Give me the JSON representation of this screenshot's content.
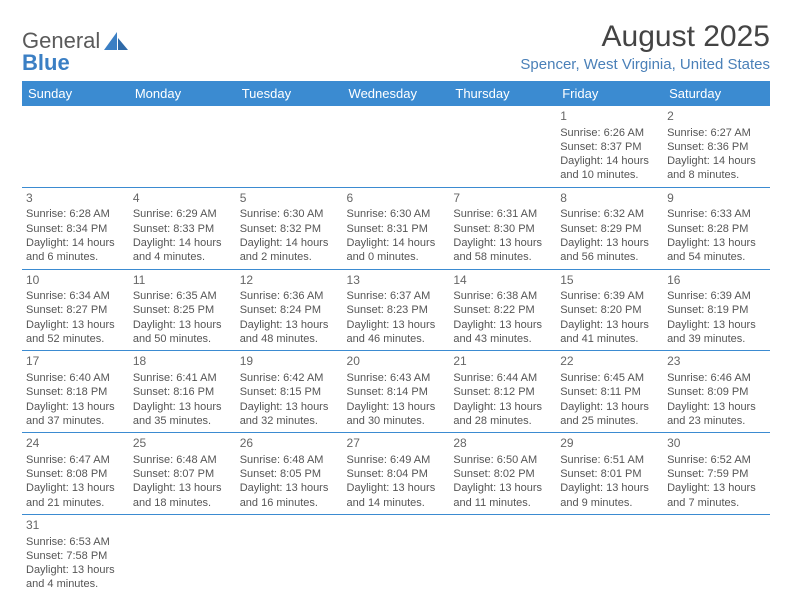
{
  "brand": {
    "part1": "General",
    "part2": "Blue"
  },
  "title": "August 2025",
  "location": "Spencer, West Virginia, United States",
  "colors": {
    "header_bg": "#3b8bd1",
    "header_text": "#ffffff",
    "cell_border": "#3b8bd1",
    "location_color": "#4a80b8",
    "daynum_color": "#666666",
    "body_text": "#555555"
  },
  "day_headers": [
    "Sunday",
    "Monday",
    "Tuesday",
    "Wednesday",
    "Thursday",
    "Friday",
    "Saturday"
  ],
  "weeks": [
    [
      null,
      null,
      null,
      null,
      null,
      {
        "n": "1",
        "sr": "Sunrise: 6:26 AM",
        "ss": "Sunset: 8:37 PM",
        "dl": "Daylight: 14 hours and 10 minutes."
      },
      {
        "n": "2",
        "sr": "Sunrise: 6:27 AM",
        "ss": "Sunset: 8:36 PM",
        "dl": "Daylight: 14 hours and 8 minutes."
      }
    ],
    [
      {
        "n": "3",
        "sr": "Sunrise: 6:28 AM",
        "ss": "Sunset: 8:34 PM",
        "dl": "Daylight: 14 hours and 6 minutes."
      },
      {
        "n": "4",
        "sr": "Sunrise: 6:29 AM",
        "ss": "Sunset: 8:33 PM",
        "dl": "Daylight: 14 hours and 4 minutes."
      },
      {
        "n": "5",
        "sr": "Sunrise: 6:30 AM",
        "ss": "Sunset: 8:32 PM",
        "dl": "Daylight: 14 hours and 2 minutes."
      },
      {
        "n": "6",
        "sr": "Sunrise: 6:30 AM",
        "ss": "Sunset: 8:31 PM",
        "dl": "Daylight: 14 hours and 0 minutes."
      },
      {
        "n": "7",
        "sr": "Sunrise: 6:31 AM",
        "ss": "Sunset: 8:30 PM",
        "dl": "Daylight: 13 hours and 58 minutes."
      },
      {
        "n": "8",
        "sr": "Sunrise: 6:32 AM",
        "ss": "Sunset: 8:29 PM",
        "dl": "Daylight: 13 hours and 56 minutes."
      },
      {
        "n": "9",
        "sr": "Sunrise: 6:33 AM",
        "ss": "Sunset: 8:28 PM",
        "dl": "Daylight: 13 hours and 54 minutes."
      }
    ],
    [
      {
        "n": "10",
        "sr": "Sunrise: 6:34 AM",
        "ss": "Sunset: 8:27 PM",
        "dl": "Daylight: 13 hours and 52 minutes."
      },
      {
        "n": "11",
        "sr": "Sunrise: 6:35 AM",
        "ss": "Sunset: 8:25 PM",
        "dl": "Daylight: 13 hours and 50 minutes."
      },
      {
        "n": "12",
        "sr": "Sunrise: 6:36 AM",
        "ss": "Sunset: 8:24 PM",
        "dl": "Daylight: 13 hours and 48 minutes."
      },
      {
        "n": "13",
        "sr": "Sunrise: 6:37 AM",
        "ss": "Sunset: 8:23 PM",
        "dl": "Daylight: 13 hours and 46 minutes."
      },
      {
        "n": "14",
        "sr": "Sunrise: 6:38 AM",
        "ss": "Sunset: 8:22 PM",
        "dl": "Daylight: 13 hours and 43 minutes."
      },
      {
        "n": "15",
        "sr": "Sunrise: 6:39 AM",
        "ss": "Sunset: 8:20 PM",
        "dl": "Daylight: 13 hours and 41 minutes."
      },
      {
        "n": "16",
        "sr": "Sunrise: 6:39 AM",
        "ss": "Sunset: 8:19 PM",
        "dl": "Daylight: 13 hours and 39 minutes."
      }
    ],
    [
      {
        "n": "17",
        "sr": "Sunrise: 6:40 AM",
        "ss": "Sunset: 8:18 PM",
        "dl": "Daylight: 13 hours and 37 minutes."
      },
      {
        "n": "18",
        "sr": "Sunrise: 6:41 AM",
        "ss": "Sunset: 8:16 PM",
        "dl": "Daylight: 13 hours and 35 minutes."
      },
      {
        "n": "19",
        "sr": "Sunrise: 6:42 AM",
        "ss": "Sunset: 8:15 PM",
        "dl": "Daylight: 13 hours and 32 minutes."
      },
      {
        "n": "20",
        "sr": "Sunrise: 6:43 AM",
        "ss": "Sunset: 8:14 PM",
        "dl": "Daylight: 13 hours and 30 minutes."
      },
      {
        "n": "21",
        "sr": "Sunrise: 6:44 AM",
        "ss": "Sunset: 8:12 PM",
        "dl": "Daylight: 13 hours and 28 minutes."
      },
      {
        "n": "22",
        "sr": "Sunrise: 6:45 AM",
        "ss": "Sunset: 8:11 PM",
        "dl": "Daylight: 13 hours and 25 minutes."
      },
      {
        "n": "23",
        "sr": "Sunrise: 6:46 AM",
        "ss": "Sunset: 8:09 PM",
        "dl": "Daylight: 13 hours and 23 minutes."
      }
    ],
    [
      {
        "n": "24",
        "sr": "Sunrise: 6:47 AM",
        "ss": "Sunset: 8:08 PM",
        "dl": "Daylight: 13 hours and 21 minutes."
      },
      {
        "n": "25",
        "sr": "Sunrise: 6:48 AM",
        "ss": "Sunset: 8:07 PM",
        "dl": "Daylight: 13 hours and 18 minutes."
      },
      {
        "n": "26",
        "sr": "Sunrise: 6:48 AM",
        "ss": "Sunset: 8:05 PM",
        "dl": "Daylight: 13 hours and 16 minutes."
      },
      {
        "n": "27",
        "sr": "Sunrise: 6:49 AM",
        "ss": "Sunset: 8:04 PM",
        "dl": "Daylight: 13 hours and 14 minutes."
      },
      {
        "n": "28",
        "sr": "Sunrise: 6:50 AM",
        "ss": "Sunset: 8:02 PM",
        "dl": "Daylight: 13 hours and 11 minutes."
      },
      {
        "n": "29",
        "sr": "Sunrise: 6:51 AM",
        "ss": "Sunset: 8:01 PM",
        "dl": "Daylight: 13 hours and 9 minutes."
      },
      {
        "n": "30",
        "sr": "Sunrise: 6:52 AM",
        "ss": "Sunset: 7:59 PM",
        "dl": "Daylight: 13 hours and 7 minutes."
      }
    ],
    [
      {
        "n": "31",
        "sr": "Sunrise: 6:53 AM",
        "ss": "Sunset: 7:58 PM",
        "dl": "Daylight: 13 hours and 4 minutes."
      },
      null,
      null,
      null,
      null,
      null,
      null
    ]
  ]
}
